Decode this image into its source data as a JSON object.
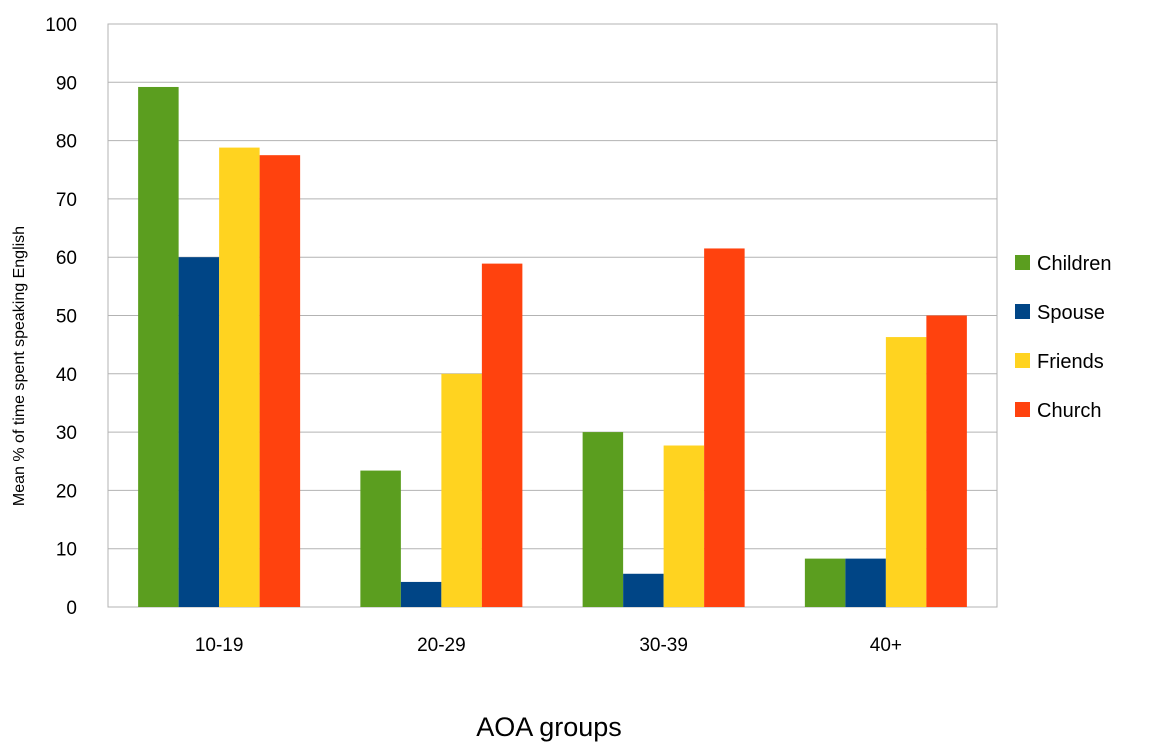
{
  "chart_data": {
    "type": "bar",
    "title": "",
    "xlabel": "AOA groups",
    "ylabel": "Mean % of time spent speaking English",
    "ylim": [
      0,
      100
    ],
    "yticks": [
      0,
      10,
      20,
      30,
      40,
      50,
      60,
      70,
      80,
      90,
      100
    ],
    "categories": [
      "10-19",
      "20-29",
      "30-39",
      "40+"
    ],
    "series": [
      {
        "name": "Children",
        "color": "#5b9e1f",
        "values": [
          89.2,
          23.4,
          30.0,
          8.3
        ]
      },
      {
        "name": "Spouse",
        "color": "#004586",
        "values": [
          60.0,
          4.3,
          5.7,
          8.3
        ]
      },
      {
        "name": "Friends",
        "color": "#ffd320",
        "values": [
          78.8,
          40.0,
          27.7,
          46.3
        ]
      },
      {
        "name": "Church",
        "color": "#ff420e",
        "values": [
          77.5,
          58.9,
          61.5,
          50.0
        ]
      }
    ],
    "grid": true,
    "legend_position": "right"
  }
}
